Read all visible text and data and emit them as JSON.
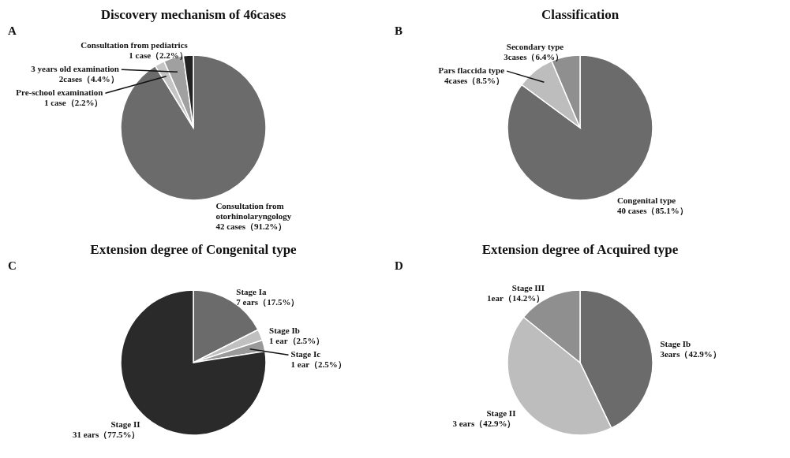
{
  "chart_data": [
    {
      "type": "pie",
      "title": "Discovery mechanism of 46cases",
      "annotations": [
        "A"
      ],
      "categories": [
        "Consultation from otorhinolaryngology",
        "Pre-school examination",
        "3 years old examination",
        "Consultation from pediatrics"
      ],
      "values": [
        91.2,
        2.2,
        4.4,
        2.2
      ],
      "value_labels": [
        "42 cases（91.2%）",
        "1 case（2.2%）",
        "2cases（4.4%）",
        "1 case（2.2%）"
      ],
      "colors": [
        "#6b6b6b",
        "#c4c4c4",
        "#a0a0a0",
        "#222222"
      ]
    },
    {
      "type": "pie",
      "title": "Classification",
      "annotations": [
        "B"
      ],
      "categories": [
        "Congenital type",
        "Pars flaccida type",
        "Secondary type"
      ],
      "values": [
        85.1,
        8.5,
        6.4
      ],
      "value_labels": [
        "40 cases（85.1%）",
        "4cases（8.5%）",
        "3cases（6.4%）"
      ],
      "colors": [
        "#6b6b6b",
        "#bdbdbd",
        "#8f8f8f"
      ]
    },
    {
      "type": "pie",
      "title": "Extension degree of Congenital type",
      "annotations": [
        "C"
      ],
      "categories": [
        "Stage Ia",
        "Stage Ib",
        "Stage Ic",
        "Stage II"
      ],
      "values": [
        17.5,
        2.5,
        2.5,
        77.5
      ],
      "value_labels": [
        "7 ears（17.5%）",
        "1 ear（2.5%）",
        "1 ear（2.5%）",
        "31 ears（77.5%）"
      ],
      "colors": [
        "#6b6b6b",
        "#c0c0c0",
        "#999999",
        "#2a2a2a"
      ]
    },
    {
      "type": "pie",
      "title": "Extension degree of Acquired type",
      "annotations": [
        "D"
      ],
      "categories": [
        "Stage Ib",
        "Stage II",
        "Stage III"
      ],
      "values": [
        42.9,
        42.9,
        14.2
      ],
      "value_labels": [
        "3ears（42.9%）",
        "3 ears（42.9%）",
        "1ear（14.2%）"
      ],
      "colors": [
        "#6b6b6b",
        "#bdbdbd",
        "#8f8f8f"
      ]
    }
  ]
}
